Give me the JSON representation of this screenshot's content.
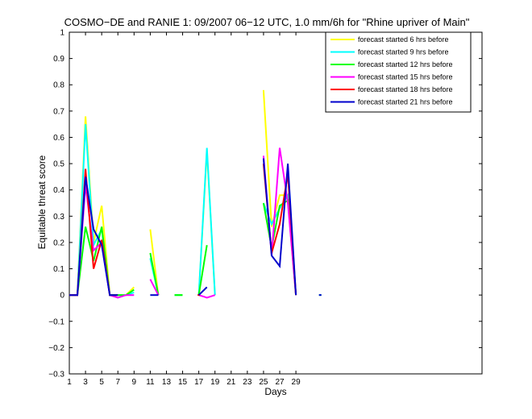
{
  "chart_data": {
    "type": "line",
    "title": "COSMO−DE and RANIE 1: 09/2007 06−12 UTC, 1.0 mm/6h for \"Rhine upriver of Main\"",
    "xlabel": "Days",
    "ylabel": "Equitable threat score",
    "xlim": [
      1,
      52
    ],
    "ylim": [
      -0.3,
      1
    ],
    "xticks": [
      1,
      3,
      5,
      7,
      9,
      11,
      13,
      15,
      17,
      19,
      21,
      23,
      25,
      27,
      29
    ],
    "yticks": [
      -0.3,
      -0.2,
      -0.1,
      0,
      0.1,
      0.2,
      0.3,
      0.4,
      0.5,
      0.6,
      0.7,
      0.8,
      0.9,
      1
    ],
    "ytick_labels": [
      "−0.3",
      "−0.2",
      "−0.1",
      "0",
      "0.1",
      "0.2",
      "0.3",
      "0.4",
      "0.5",
      "0.6",
      "0.7",
      "0.8",
      "0.9",
      "1"
    ],
    "grid": false,
    "legend_position": "top-right",
    "series": [
      {
        "name": "forecast started 6 hrs before",
        "color": "#ffff00",
        "segments": [
          [
            [
              1,
              0
            ],
            [
              2,
              0
            ],
            [
              3,
              0.68
            ],
            [
              4,
              0.2
            ],
            [
              5,
              0.34
            ],
            [
              6,
              0
            ],
            [
              7,
              0
            ],
            [
              8,
              0
            ],
            [
              9,
              0.03
            ]
          ],
          [
            [
              11,
              0.25
            ],
            [
              12,
              0
            ]
          ],
          [
            [
              14,
              0
            ],
            [
              15,
              0
            ]
          ],
          [
            [
              17,
              0
            ],
            [
              18,
              0.55
            ],
            [
              19,
              0
            ]
          ],
          [
            [
              25,
              0.78
            ],
            [
              26,
              0.26
            ],
            [
              27,
              0.38
            ],
            [
              28,
              0.38
            ],
            [
              29,
              0
            ]
          ],
          [
            [
              32,
              0
            ]
          ]
        ]
      },
      {
        "name": "forecast started 9 hrs before",
        "color": "#00ffff",
        "segments": [
          [
            [
              1,
              0
            ],
            [
              2,
              0
            ],
            [
              3,
              0.65
            ],
            [
              4,
              0.19
            ],
            [
              5,
              0.25
            ],
            [
              6,
              0
            ],
            [
              7,
              0
            ],
            [
              8,
              0
            ],
            [
              9,
              0.01
            ]
          ],
          [
            [
              11,
              0.14
            ],
            [
              12,
              0
            ]
          ],
          [
            [
              14,
              0
            ],
            [
              15,
              0
            ]
          ],
          [
            [
              17,
              0
            ],
            [
              18,
              0.56
            ],
            [
              19,
              0
            ]
          ],
          [
            [
              25,
              0.35
            ],
            [
              26,
              0.27
            ],
            [
              27,
              0.33
            ],
            [
              28,
              0.38
            ],
            [
              29,
              0
            ]
          ],
          [
            [
              32,
              0
            ]
          ]
        ]
      },
      {
        "name": "forecast started 12 hrs before",
        "color": "#00ff00",
        "segments": [
          [
            [
              1,
              0
            ],
            [
              2,
              0
            ],
            [
              3,
              0.26
            ],
            [
              4,
              0.13
            ],
            [
              5,
              0.26
            ],
            [
              6,
              0
            ],
            [
              7,
              0
            ],
            [
              8,
              0
            ],
            [
              9,
              0.02
            ]
          ],
          [
            [
              11,
              0.16
            ],
            [
              12,
              0
            ]
          ],
          [
            [
              14,
              0
            ],
            [
              15,
              0
            ]
          ],
          [
            [
              17,
              0
            ],
            [
              18,
              0.19
            ]
          ],
          [
            [
              25,
              0.35
            ],
            [
              26,
              0.18
            ],
            [
              27,
              0.34
            ],
            [
              28,
              0.36
            ],
            [
              29,
              0
            ]
          ]
        ]
      },
      {
        "name": "forecast started 15 hrs before",
        "color": "#ff00ff",
        "segments": [
          [
            [
              1,
              0
            ],
            [
              2,
              0
            ],
            [
              3,
              0.42
            ],
            [
              4,
              0.17
            ],
            [
              5,
              0.2
            ],
            [
              6,
              0
            ],
            [
              7,
              -0.01
            ],
            [
              8,
              0
            ],
            [
              9,
              0
            ]
          ],
          [
            [
              11,
              0.06
            ],
            [
              12,
              0
            ]
          ],
          [
            [
              17,
              0
            ],
            [
              18,
              -0.01
            ],
            [
              19,
              0
            ]
          ],
          [
            [
              25,
              0.53
            ],
            [
              26,
              0.15
            ],
            [
              27,
              0.56
            ],
            [
              28,
              0.35
            ],
            [
              29,
              0
            ]
          ]
        ]
      },
      {
        "name": "forecast started 18 hrs before",
        "color": "#ff0000",
        "segments": [
          [
            [
              1,
              0
            ],
            [
              2,
              0
            ],
            [
              3,
              0.48
            ],
            [
              4,
              0.1
            ],
            [
              5,
              0.21
            ],
            [
              6,
              0
            ],
            [
              7,
              0
            ]
          ],
          [
            [
              17,
              0
            ]
          ],
          [
            [
              25,
              0.5
            ],
            [
              26,
              0.16
            ],
            [
              27,
              0.27
            ],
            [
              28,
              0.46
            ],
            [
              29,
              0
            ]
          ]
        ]
      },
      {
        "name": "forecast started 21 hrs before",
        "color": "#0000cc",
        "segments": [
          [
            [
              1,
              0
            ],
            [
              2,
              0
            ],
            [
              3,
              0.45
            ],
            [
              4,
              0.25
            ],
            [
              5,
              0.19
            ],
            [
              6,
              0
            ],
            [
              7,
              0
            ]
          ],
          [
            [
              11,
              0
            ],
            [
              12,
              0
            ]
          ],
          [
            [
              17,
              0
            ],
            [
              18,
              0.03
            ]
          ],
          [
            [
              25,
              0.52
            ],
            [
              26,
              0.15
            ],
            [
              27,
              0.11
            ],
            [
              28,
              0.5
            ],
            [
              29,
              0
            ]
          ],
          [
            [
              32,
              0
            ]
          ]
        ]
      }
    ]
  }
}
